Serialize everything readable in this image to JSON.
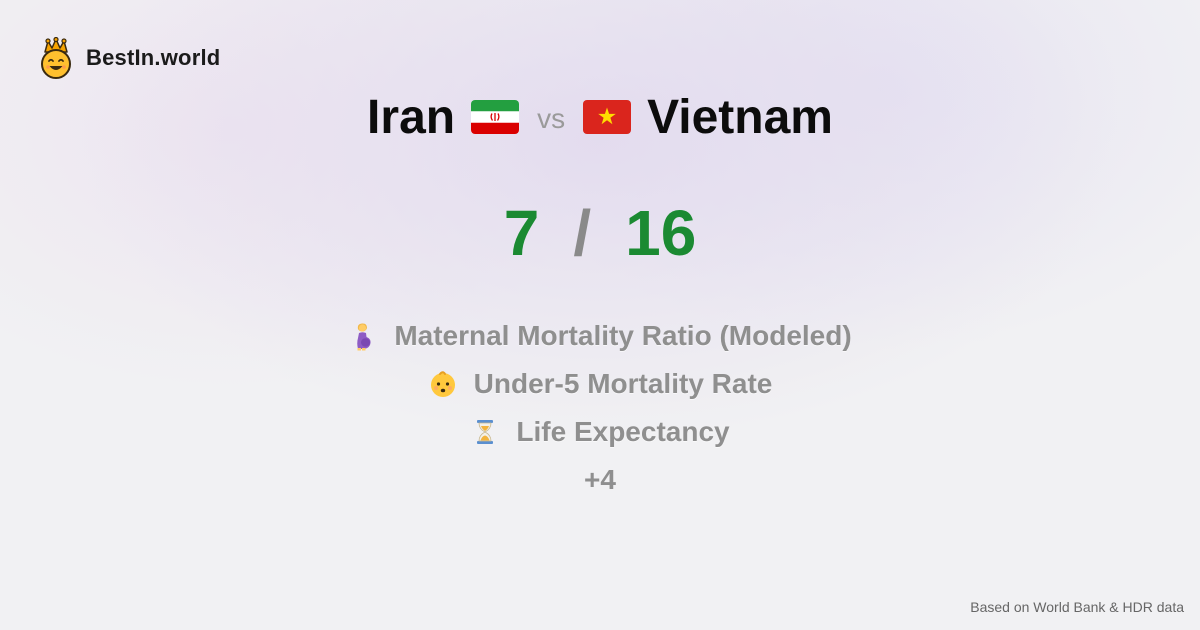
{
  "brand": {
    "name": "BestIn.world",
    "logo_icon": "crowned-smiley-icon"
  },
  "comparison": {
    "country_a": "Iran",
    "country_a_flag": "iran-flag-icon",
    "vs_label": "vs",
    "country_b": "Vietnam",
    "country_b_flag": "vietnam-flag-icon"
  },
  "score": {
    "a": "7",
    "separator": "/",
    "b": "16",
    "color": "#1b8a32"
  },
  "metrics": [
    {
      "icon": "pregnant-woman-icon",
      "label": "Maternal Mortality Ratio (Modeled)"
    },
    {
      "icon": "baby-icon",
      "label": "Under-5 Mortality Rate"
    },
    {
      "icon": "hourglass-icon",
      "label": "Life Expectancy"
    }
  ],
  "more_label": "+4",
  "footer": {
    "source": "Based on World Bank & HDR data"
  }
}
